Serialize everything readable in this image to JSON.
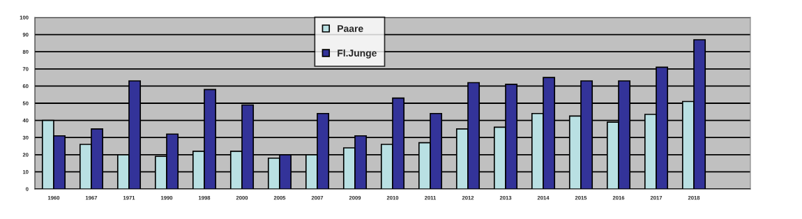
{
  "chart_data": {
    "type": "bar",
    "categories": [
      "1960",
      "1967",
      "1971",
      "1990",
      "1998",
      "2000",
      "2005",
      "2007",
      "2009",
      "2010",
      "2011",
      "2012",
      "2013",
      "2014",
      "2015",
      "2016",
      "2017",
      "2018",
      null
    ],
    "series": [
      {
        "name": "Paare",
        "color": "#b9e0e3",
        "values": [
          40,
          26,
          20,
          19,
          22,
          22,
          18,
          20,
          24,
          26,
          27,
          35,
          36,
          44,
          42.5,
          39,
          43.5,
          51,
          null
        ]
      },
      {
        "name": "Fl.Junge",
        "color": "#333399",
        "values": [
          31,
          35,
          63,
          32,
          58,
          49,
          20,
          44,
          31,
          53,
          44,
          62,
          61,
          65,
          63,
          63,
          71,
          87,
          null
        ]
      }
    ],
    "ylim": [
      0,
      100
    ],
    "yticks": [
      0,
      10,
      20,
      30,
      40,
      50,
      60,
      70,
      80,
      90,
      100
    ],
    "grid": "y",
    "legend": "top"
  }
}
